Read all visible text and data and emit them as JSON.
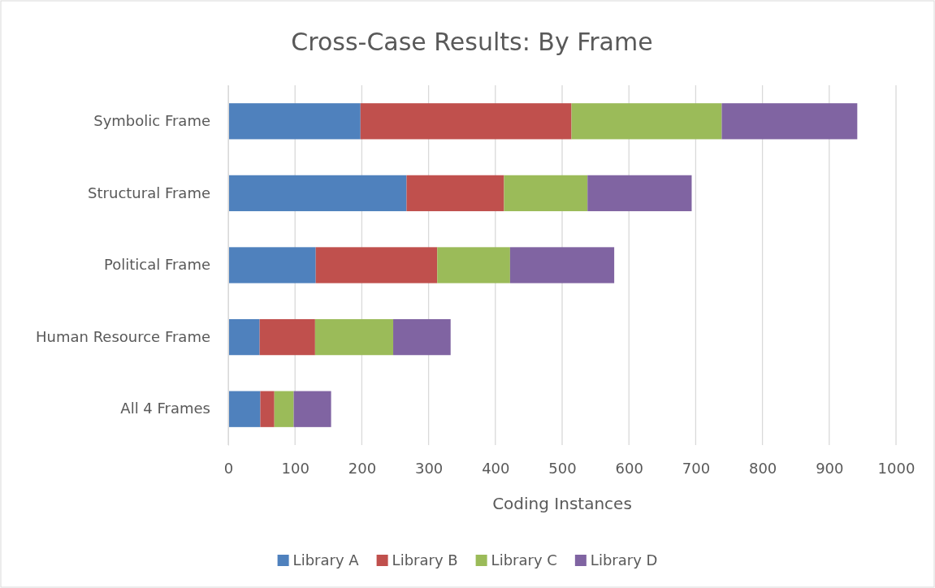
{
  "chart_data": {
    "type": "bar",
    "orientation": "horizontal",
    "stacked": true,
    "title": "Cross-Case Results: By Frame",
    "xlabel": "Coding Instances",
    "categories": [
      "Symbolic Frame",
      "Structural Frame",
      "Political Frame",
      "Human Resource Frame",
      "All 4 Frames"
    ],
    "series": [
      {
        "name": "Library A",
        "color": "#4f81bd",
        "values": [
          198,
          267,
          131,
          47,
          48
        ]
      },
      {
        "name": "Library B",
        "color": "#c0504d",
        "values": [
          316,
          146,
          182,
          83,
          21
        ]
      },
      {
        "name": "Library C",
        "color": "#9bbb59",
        "values": [
          225,
          125,
          109,
          117,
          29
        ]
      },
      {
        "name": "Library D",
        "color": "#8064a2",
        "values": [
          203,
          156,
          156,
          86,
          56
        ]
      }
    ],
    "xlim": [
      0,
      1000
    ],
    "xticks": [
      0,
      100,
      200,
      300,
      400,
      500,
      600,
      700,
      800,
      900,
      1000
    ],
    "grid": "x",
    "legend": "bottom"
  }
}
